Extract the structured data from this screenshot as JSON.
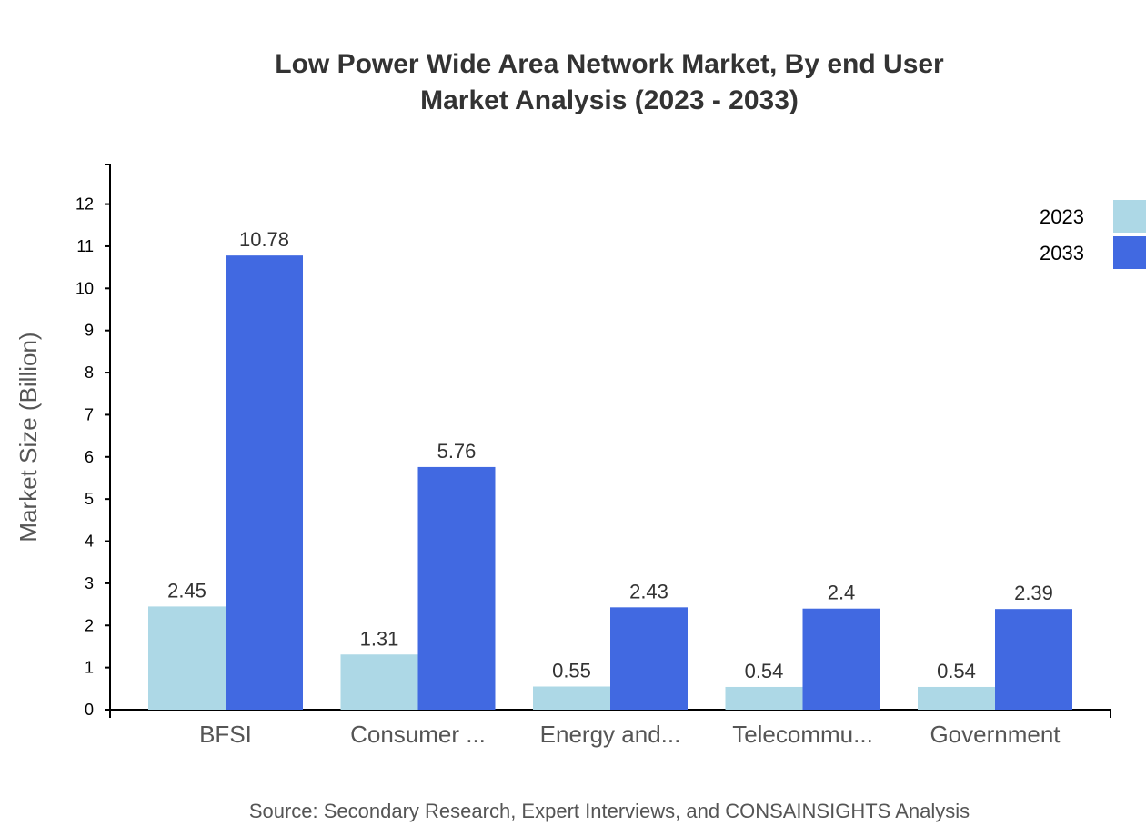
{
  "chart_data": {
    "type": "bar",
    "title": [
      "Low Power Wide Area Network Market, By end User",
      "Market Analysis (2023 - 2033)"
    ],
    "xlabel": "",
    "ylabel": "Market Size (Billion)",
    "categories": [
      "BFSI",
      "Consumer ...",
      "Energy and...",
      "Telecommu...",
      "Government"
    ],
    "series": [
      {
        "name": "2023",
        "color": "#add8e6",
        "values": [
          2.45,
          1.31,
          0.55,
          0.54,
          0.54
        ]
      },
      {
        "name": "2033",
        "color": "#4169e1",
        "values": [
          10.78,
          5.76,
          2.43,
          2.4,
          2.39
        ]
      }
    ],
    "ylim": [
      0,
      12.94
    ],
    "yticks": [
      0,
      1,
      2,
      3,
      4,
      5,
      6,
      7,
      8,
      9,
      10,
      11,
      12
    ],
    "grid": false,
    "legend": "top-right",
    "source": "Source: Secondary Research, Expert Interviews, and CONSAINSIGHTS Analysis"
  }
}
